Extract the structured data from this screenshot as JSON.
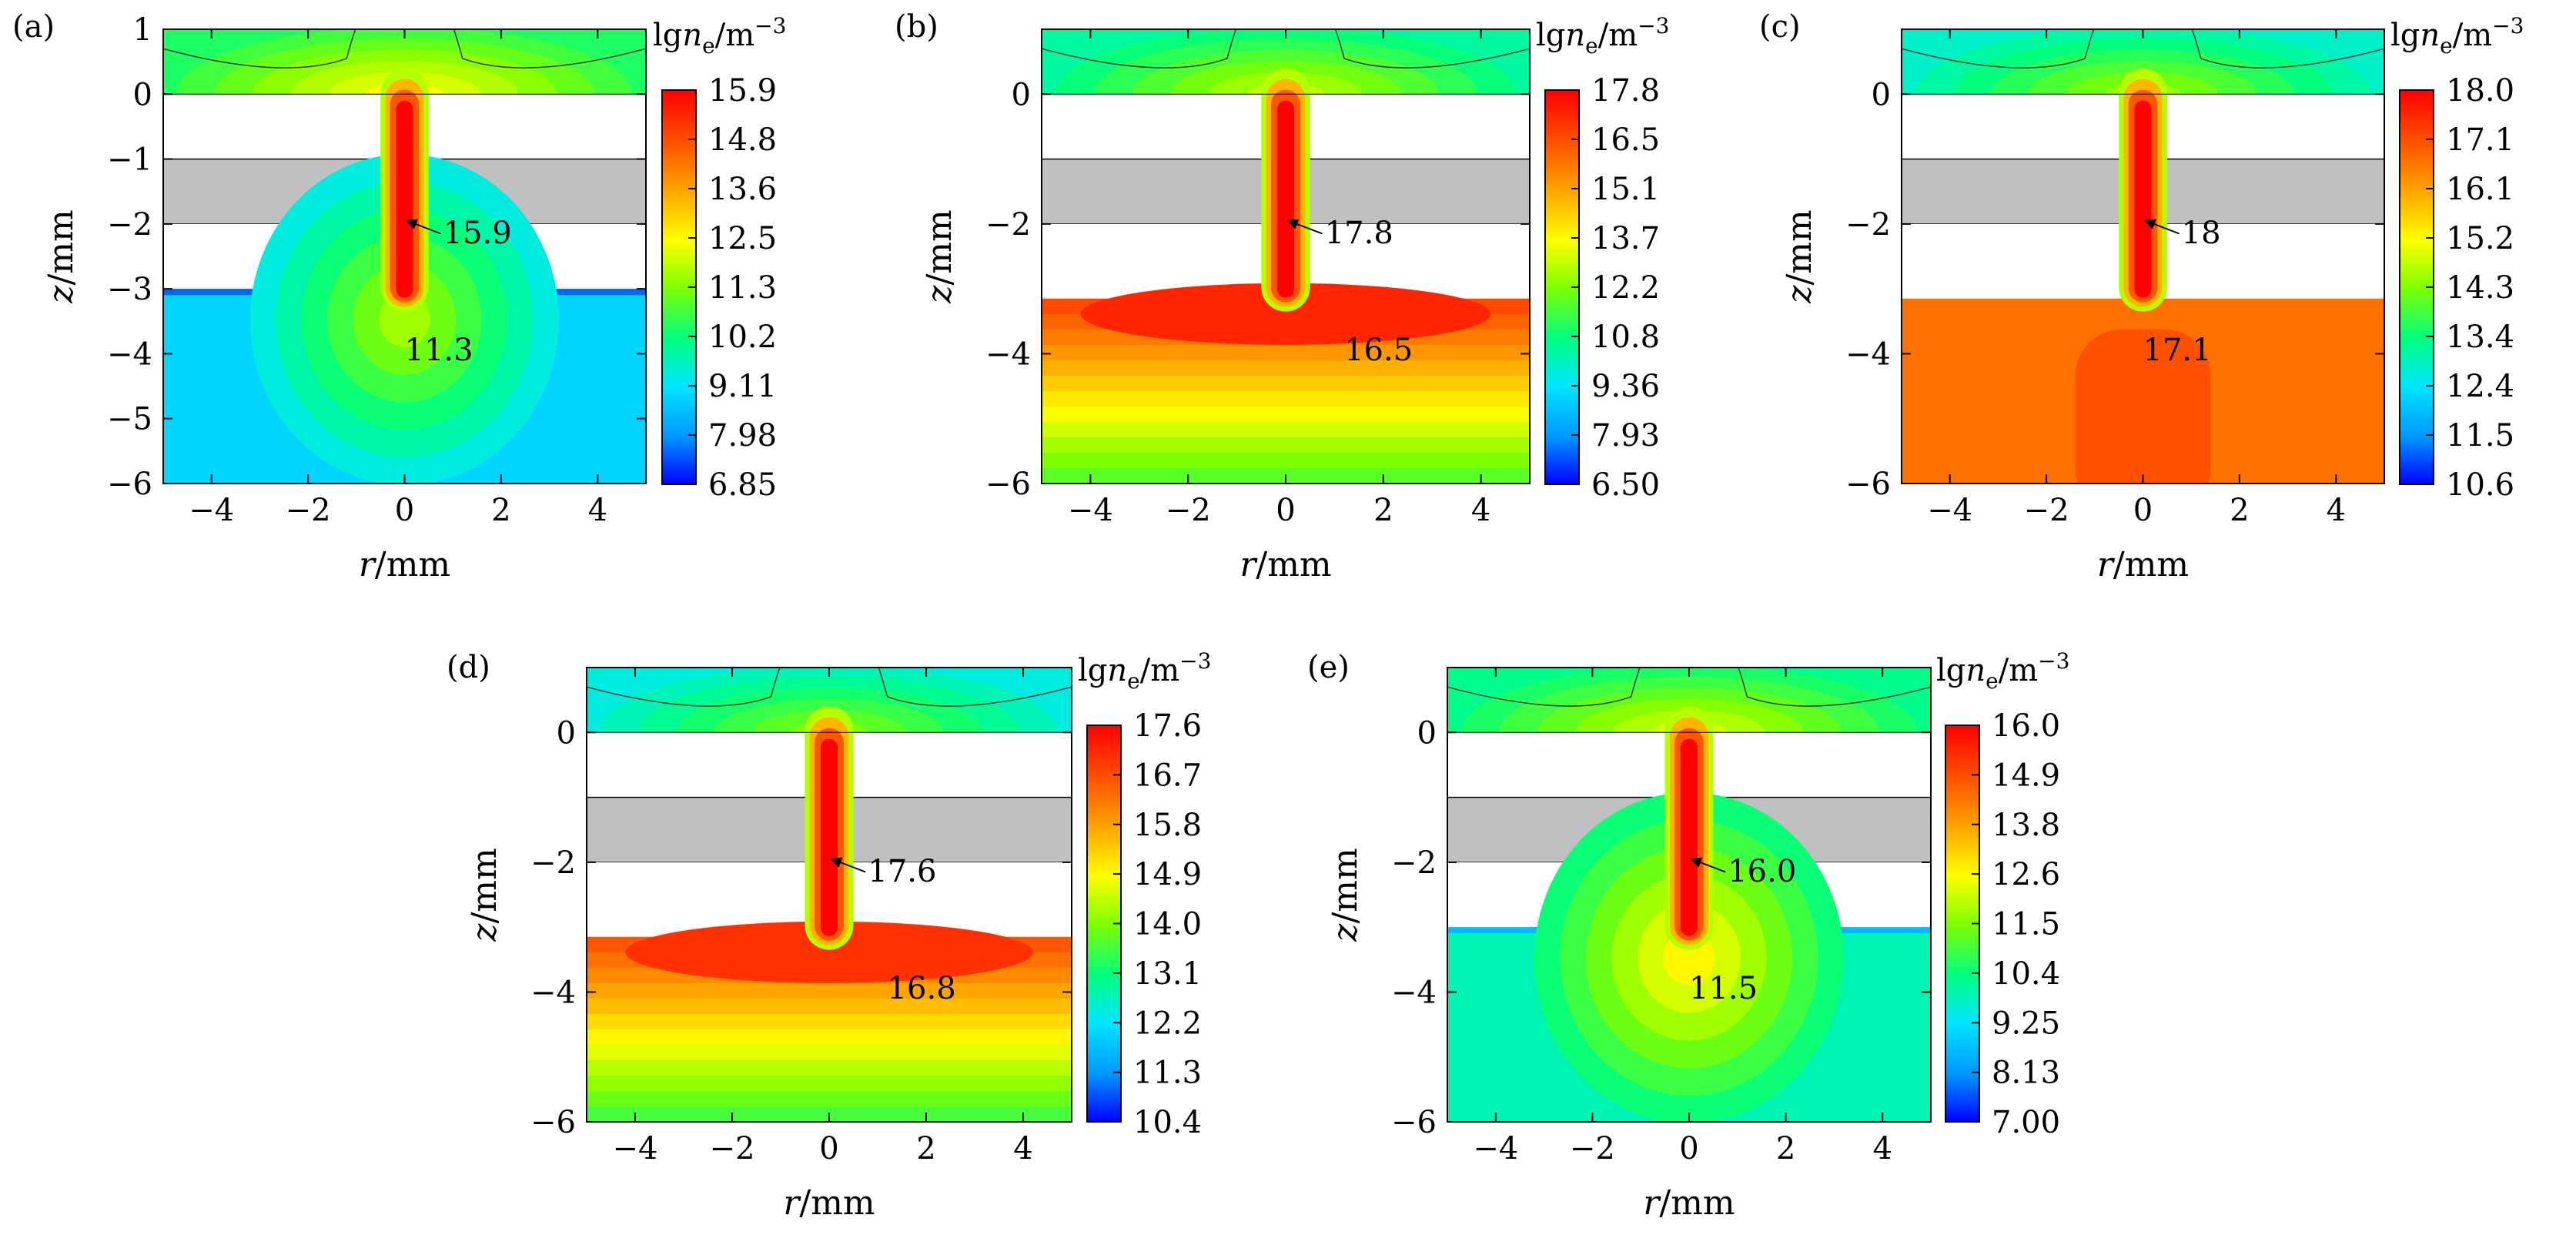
{
  "chart_data": [
    {
      "type": "heatmap",
      "panel_label": "(a)",
      "xlabel_var": "r",
      "xlabel_unit": "/mm",
      "ylabel_var": "z",
      "ylabel_unit": "/mm",
      "xlim": [
        -5,
        5
      ],
      "ylim": [
        -6,
        1
      ],
      "x_ticks": [
        "−4",
        "−2",
        "0",
        "2",
        "4"
      ],
      "y_ticks": [
        "1",
        "0",
        "−1",
        "−2",
        "−3",
        "−4",
        "−5",
        "−6"
      ],
      "colorbar_title": "lg",
      "colorbar_var": "n",
      "colorbar_sub": "e",
      "colorbar_unit": "/m",
      "colorbar_exp": "−3",
      "colorbar_ticks": [
        "15.9",
        "14.8",
        "13.6",
        "12.5",
        "11.3",
        "10.2",
        "9.11",
        "7.98",
        "6.85"
      ],
      "peak_value": 15.9,
      "annotations": [
        "15.9",
        "11.3"
      ],
      "top_level": 0.62,
      "bottom_level": 0.28,
      "bottom_mode": "spread"
    },
    {
      "type": "heatmap",
      "panel_label": "(b)",
      "xlabel_var": "r",
      "xlabel_unit": "/mm",
      "ylabel_var": "z",
      "ylabel_unit": "/mm",
      "xlim": [
        -5,
        5
      ],
      "ylim": [
        -6,
        1
      ],
      "x_ticks": [
        "−4",
        "−2",
        "0",
        "2",
        "4"
      ],
      "y_ticks": [
        "0",
        "−2",
        "−4",
        "−6"
      ],
      "colorbar_title": "lg",
      "colorbar_var": "n",
      "colorbar_sub": "e",
      "colorbar_unit": "/m",
      "colorbar_exp": "−3",
      "colorbar_ticks": [
        "17.8",
        "16.5",
        "15.1",
        "13.7",
        "12.2",
        "10.8",
        "9.36",
        "7.93",
        "6.50"
      ],
      "peak_value": 17.8,
      "annotations": [
        "17.8",
        "16.5"
      ],
      "top_level": 0.56,
      "bottom_level": 0.88,
      "bottom_mode": "dense"
    },
    {
      "type": "heatmap",
      "panel_label": "(c)",
      "xlabel_var": "r",
      "xlabel_unit": "/mm",
      "ylabel_var": "z",
      "ylabel_unit": "/mm",
      "xlim": [
        -5,
        5
      ],
      "ylim": [
        -6,
        1
      ],
      "x_ticks": [
        "−4",
        "−2",
        "0",
        "2",
        "4"
      ],
      "y_ticks": [
        "0",
        "−2",
        "−4",
        "−6"
      ],
      "colorbar_title": "lg",
      "colorbar_var": "n",
      "colorbar_sub": "e",
      "colorbar_unit": "/m",
      "colorbar_exp": "−3",
      "colorbar_ticks": [
        "18.0",
        "17.1",
        "16.1",
        "15.2",
        "14.3",
        "13.4",
        "12.4",
        "11.5",
        "10.6"
      ],
      "peak_value": 18,
      "annotations": [
        "18",
        "17.1"
      ],
      "top_level": 0.52,
      "bottom_level": 0.82,
      "bottom_mode": "uniform"
    },
    {
      "type": "heatmap",
      "panel_label": "(d)",
      "xlabel_var": "r",
      "xlabel_unit": "/mm",
      "ylabel_var": "z",
      "ylabel_unit": "/mm",
      "xlim": [
        -5,
        5
      ],
      "ylim": [
        -6,
        1
      ],
      "x_ticks": [
        "−4",
        "−2",
        "0",
        "2",
        "4"
      ],
      "y_ticks": [
        "0",
        "−2",
        "−4",
        "−6"
      ],
      "colorbar_title": "lg",
      "colorbar_var": "n",
      "colorbar_sub": "e",
      "colorbar_unit": "/m",
      "colorbar_exp": "−3",
      "colorbar_ticks": [
        "17.6",
        "16.7",
        "15.8",
        "14.9",
        "14.0",
        "13.1",
        "12.2",
        "11.3",
        "10.4"
      ],
      "peak_value": 17.6,
      "annotations": [
        "17.6",
        "16.8"
      ],
      "top_level": 0.5,
      "bottom_level": 0.86,
      "bottom_mode": "dense"
    },
    {
      "type": "heatmap",
      "panel_label": "(e)",
      "xlabel_var": "r",
      "xlabel_unit": "/mm",
      "ylabel_var": "z",
      "ylabel_unit": "/mm",
      "xlim": [
        -5,
        5
      ],
      "ylim": [
        -6,
        1
      ],
      "x_ticks": [
        "−4",
        "−2",
        "0",
        "2",
        "4"
      ],
      "y_ticks": [
        "0",
        "−2",
        "−4",
        "−6"
      ],
      "colorbar_title": "lg",
      "colorbar_var": "n",
      "colorbar_sub": "e",
      "colorbar_unit": "/m",
      "colorbar_exp": "−3",
      "colorbar_ticks": [
        "16.0",
        "14.9",
        "13.8",
        "12.6",
        "11.5",
        "10.4",
        "9.25",
        "8.13",
        "7.00"
      ],
      "peak_value": 16,
      "annotations": [
        "16.0",
        "11.5"
      ],
      "top_level": 0.58,
      "bottom_level": 0.38,
      "bottom_mode": "spread"
    }
  ]
}
